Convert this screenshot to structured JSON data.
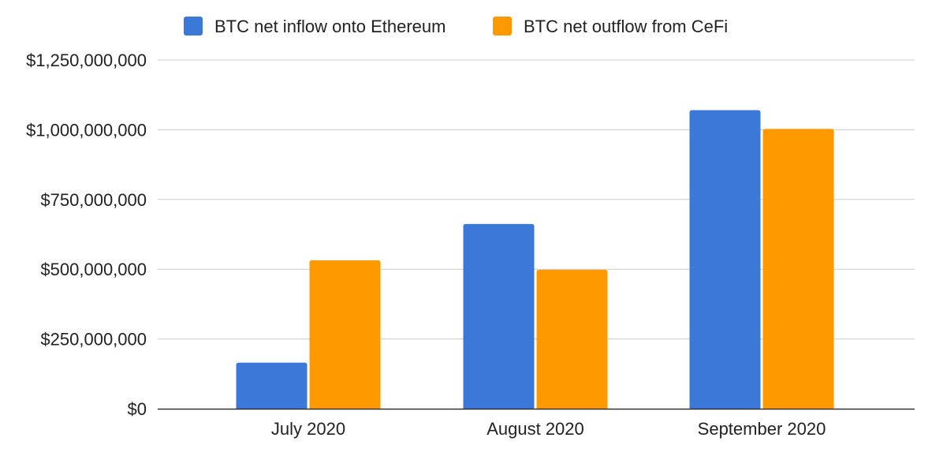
{
  "chart_data": {
    "type": "bar",
    "categories": [
      "July 2020",
      "August 2020",
      "September 2020"
    ],
    "series": [
      {
        "name": "BTC net inflow onto Ethereum",
        "color": "#3c78d8",
        "values": [
          165000000,
          662000000,
          1070000000
        ]
      },
      {
        "name": "BTC net outflow from CeFi",
        "color": "#ff9900",
        "values": [
          532000000,
          498000000,
          1003000000
        ]
      }
    ],
    "ylim": [
      0,
      1250000000
    ],
    "yticks": [
      0,
      250000000,
      500000000,
      750000000,
      1000000000,
      1250000000
    ],
    "ytick_labels": [
      "$0",
      "$250,000,000",
      "$500,000,000",
      "$750,000,000",
      "$1,000,000,000",
      "$1,250,000,000"
    ],
    "grid": true,
    "legend_position": "top-center",
    "title": "",
    "xlabel": "",
    "ylabel": ""
  }
}
